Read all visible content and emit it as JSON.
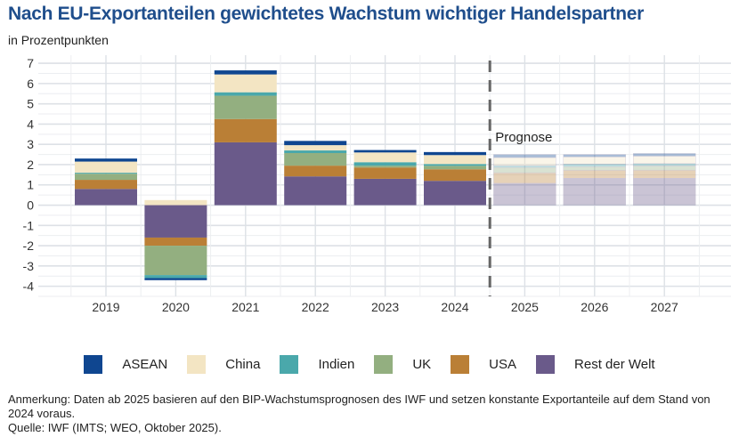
{
  "chart_data": {
    "type": "bar",
    "stacked": true,
    "title": "Nach EU-Exportanteilen gewichtetes Wachstum wichtiger Handelspartner",
    "subtitle": "in Prozentpunkten",
    "xlabel": "",
    "ylabel": "",
    "ylim": [
      -4.5,
      7.4
    ],
    "yticks": [
      7,
      6,
      5,
      4,
      3,
      2,
      1,
      0,
      -1,
      -2,
      -3,
      -4
    ],
    "grid": true,
    "legend_position": "bottom",
    "categories": [
      "2019",
      "2020",
      "2021",
      "2022",
      "2023",
      "2024",
      "2025",
      "2026",
      "2027"
    ],
    "forecast_from": "2025",
    "forecast_label": "Prognose",
    "series": [
      {
        "name": "Rest der Welt",
        "color": "#6a5a8a",
        "values": [
          0.8,
          -1.6,
          3.1,
          1.42,
          1.3,
          1.2,
          1.08,
          1.33,
          1.33
        ]
      },
      {
        "name": "USA",
        "color": "#ba7f36",
        "values": [
          0.45,
          -0.4,
          1.15,
          0.53,
          0.56,
          0.57,
          0.52,
          0.39,
          0.4
        ]
      },
      {
        "name": "UK",
        "color": "#93af80",
        "values": [
          0.3,
          -1.45,
          1.15,
          0.62,
          0.09,
          0.17,
          0.26,
          0.18,
          0.21
        ]
      },
      {
        "name": "Indien",
        "color": "#4aa8ab",
        "values": [
          0.05,
          -0.15,
          0.17,
          0.13,
          0.17,
          0.09,
          0.09,
          0.13,
          0.11
        ]
      },
      {
        "name": "China",
        "color": "#f3e5c3",
        "values": [
          0.55,
          0.25,
          0.88,
          0.26,
          0.48,
          0.44,
          0.4,
          0.35,
          0.37
        ]
      },
      {
        "name": "ASEAN",
        "color": "#0f4690",
        "values": [
          0.15,
          -0.1,
          0.2,
          0.21,
          0.12,
          0.15,
          0.15,
          0.12,
          0.13
        ]
      }
    ]
  },
  "legend": {
    "items": [
      {
        "label": "ASEAN",
        "color": "#0f4690"
      },
      {
        "label": "China",
        "color": "#f3e5c3"
      },
      {
        "label": "Indien",
        "color": "#4aa8ab"
      },
      {
        "label": "UK",
        "color": "#93af80"
      },
      {
        "label": "USA",
        "color": "#ba7f36"
      },
      {
        "label": "Rest der Welt",
        "color": "#6a5a8a"
      }
    ]
  },
  "notes": {
    "line1": "Anmerkung: Daten ab 2025 basieren auf den BIP-Wachstumsprognosen des IWF und setzen konstante Exportanteile auf dem Stand von 2024 voraus.",
    "line2": "Quelle: IWF (IMTS; WEO, Oktober 2025)."
  }
}
